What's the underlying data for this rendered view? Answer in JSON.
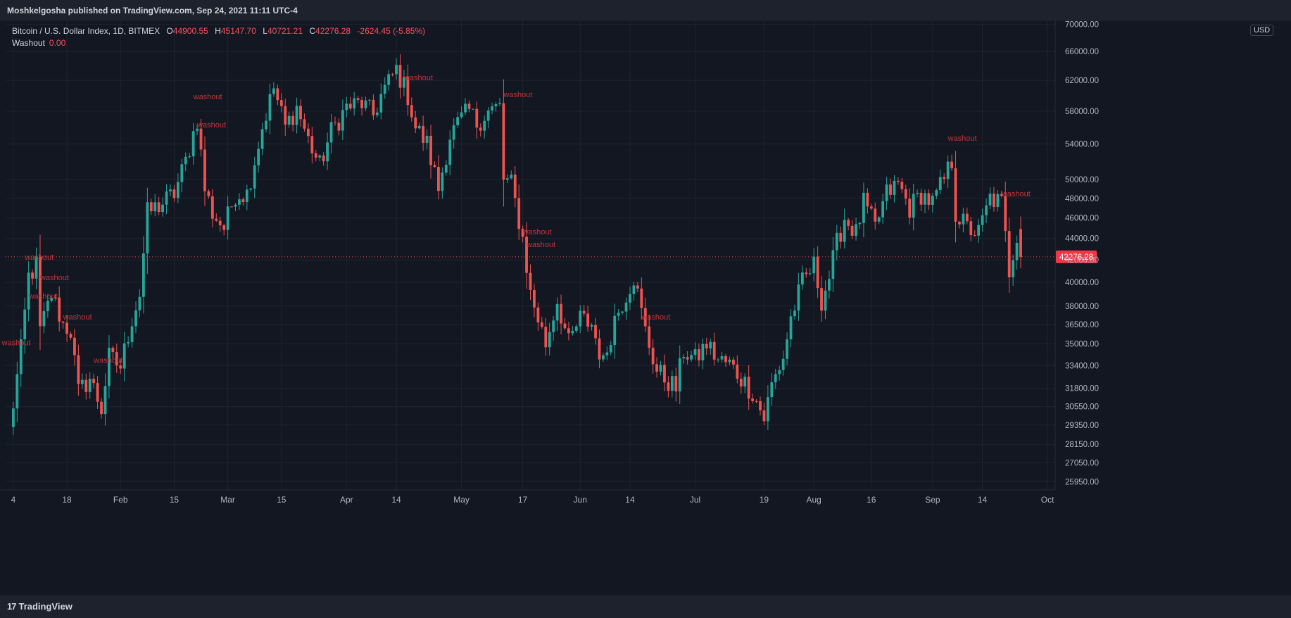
{
  "header": {
    "published_by": "Moshkelgosha published on TradingView.com, Sep 24, 2021 11:11 UTC-4"
  },
  "legend": {
    "symbol": "Bitcoin / U.S. Dollar Index, 1D, BITMEX",
    "o_label": "O",
    "o_value": "44900.55",
    "h_label": "H",
    "h_value": "45147.70",
    "l_label": "L",
    "l_value": "40721.21",
    "c_label": "C",
    "c_value": "42276.28",
    "change": "-2624.45 (-5.85%)",
    "indicator_name": "Washout",
    "indicator_value": "0.00"
  },
  "currency_badge": "USD",
  "footer": {
    "brand": "TradingView",
    "logo_mark": "17"
  },
  "colors": {
    "background": "#131722",
    "up": "#26a69a",
    "down": "#ef5350",
    "grid": "#1f2330",
    "text": "#b2b5be",
    "last_price_tag": "#f23645",
    "annotation": "#c2353a"
  },
  "chart_data": {
    "type": "candlestick",
    "title": "Bitcoin / U.S. Dollar Index, 1D, BITMEX",
    "price_scale": "log",
    "ylim": [
      25500,
      70500
    ],
    "xlim": [
      "2021-01-02",
      "2021-10-03"
    ],
    "y_ticks": [
      "70000.00",
      "66000.00",
      "62000.00",
      "58000.00",
      "54000.00",
      "50000.00",
      "48000.00",
      "46000.00",
      "44000.00",
      "42000.00",
      "40000.00",
      "38000.00",
      "36500.00",
      "35000.00",
      "33400.00",
      "31800.00",
      "30550.00",
      "29350.00",
      "28150.00",
      "27050.00",
      "25950.00"
    ],
    "x_ticks": [
      {
        "label": "4",
        "date": "2021-01-04"
      },
      {
        "label": "18",
        "date": "2021-01-18"
      },
      {
        "label": "Feb",
        "date": "2021-02-01"
      },
      {
        "label": "15",
        "date": "2021-02-15"
      },
      {
        "label": "Mar",
        "date": "2021-03-01"
      },
      {
        "label": "15",
        "date": "2021-03-15"
      },
      {
        "label": "Apr",
        "date": "2021-04-01"
      },
      {
        "label": "14",
        "date": "2021-04-14"
      },
      {
        "label": "May",
        "date": "2021-05-01"
      },
      {
        "label": "17",
        "date": "2021-05-17"
      },
      {
        "label": "Jun",
        "date": "2021-06-01"
      },
      {
        "label": "14",
        "date": "2021-06-14"
      },
      {
        "label": "Jul",
        "date": "2021-07-01"
      },
      {
        "label": "19",
        "date": "2021-07-19"
      },
      {
        "label": "Aug",
        "date": "2021-08-01"
      },
      {
        "label": "16",
        "date": "2021-08-16"
      },
      {
        "label": "Sep",
        "date": "2021-09-01"
      },
      {
        "label": "14",
        "date": "2021-09-14"
      },
      {
        "label": "Oct",
        "date": "2021-10-01"
      }
    ],
    "last_price": "42276.28",
    "series_points": [
      [
        "2021-01-03",
        29000
      ],
      [
        "2021-01-06",
        34500
      ],
      [
        "2021-01-08",
        40500
      ],
      [
        "2021-01-10",
        41500
      ],
      [
        "2021-01-11",
        36000
      ],
      [
        "2021-01-14",
        39000
      ],
      [
        "2021-01-17",
        36500
      ],
      [
        "2021-01-19",
        36000
      ],
      [
        "2021-01-21",
        31500
      ],
      [
        "2021-01-24",
        32500
      ],
      [
        "2021-01-27",
        30400
      ],
      [
        "2021-01-29",
        34000
      ],
      [
        "2021-02-01",
        33300
      ],
      [
        "2021-02-04",
        37000
      ],
      [
        "2021-02-06",
        39000
      ],
      [
        "2021-02-08",
        46500
      ],
      [
        "2021-02-12",
        47500
      ],
      [
        "2021-02-15",
        48500
      ],
      [
        "2021-02-18",
        52000
      ],
      [
        "2021-02-21",
        57000
      ],
      [
        "2021-02-23",
        49000
      ],
      [
        "2021-02-25",
        46500
      ],
      [
        "2021-02-28",
        45000
      ],
      [
        "2021-03-03",
        48500
      ],
      [
        "2021-03-06",
        48500
      ],
      [
        "2021-03-10",
        56000
      ],
      [
        "2021-03-13",
        61000
      ],
      [
        "2021-03-16",
        56000
      ],
      [
        "2021-03-19",
        58500
      ],
      [
        "2021-03-22",
        54500
      ],
      [
        "2021-03-25",
        51500
      ],
      [
        "2021-03-28",
        55500
      ],
      [
        "2021-04-01",
        58500
      ],
      [
        "2021-04-05",
        59000
      ],
      [
        "2021-04-08",
        57500
      ],
      [
        "2021-04-10",
        60000
      ],
      [
        "2021-04-14",
        63500
      ],
      [
        "2021-04-17",
        60000
      ],
      [
        "2021-04-19",
        56000
      ],
      [
        "2021-04-22",
        54000
      ],
      [
        "2021-04-25",
        49000
      ],
      [
        "2021-04-28",
        55000
      ],
      [
        "2021-05-01",
        57000
      ],
      [
        "2021-05-03",
        58000
      ],
      [
        "2021-05-05",
        56500
      ],
      [
        "2021-05-08",
        58000
      ],
      [
        "2021-05-11",
        58500
      ],
      [
        "2021-05-12",
        50000
      ],
      [
        "2021-05-14",
        49500
      ],
      [
        "2021-05-17",
        44000
      ],
      [
        "2021-05-19",
        39000
      ],
      [
        "2021-05-21",
        37000
      ],
      [
        "2021-05-23",
        35000
      ],
      [
        "2021-05-26",
        38500
      ],
      [
        "2021-05-29",
        35000
      ],
      [
        "2021-06-01",
        37000
      ],
      [
        "2021-06-04",
        36500
      ],
      [
        "2021-06-07",
        33500
      ],
      [
        "2021-06-10",
        37000
      ],
      [
        "2021-06-13",
        39000
      ],
      [
        "2021-06-15",
        40500
      ],
      [
        "2021-06-18",
        36000
      ],
      [
        "2021-06-21",
        33000
      ],
      [
        "2021-06-23",
        32500
      ],
      [
        "2021-06-26",
        31800
      ],
      [
        "2021-06-28",
        34500
      ],
      [
        "2021-07-01",
        33800
      ],
      [
        "2021-07-04",
        35000
      ],
      [
        "2021-07-07",
        33800
      ],
      [
        "2021-07-10",
        33500
      ],
      [
        "2021-07-13",
        32500
      ],
      [
        "2021-07-16",
        31500
      ],
      [
        "2021-07-19",
        29800
      ],
      [
        "2021-07-21",
        32000
      ],
      [
        "2021-07-24",
        34000
      ],
      [
        "2021-07-26",
        37000
      ],
      [
        "2021-07-29",
        40000
      ],
      [
        "2021-08-01",
        41500
      ],
      [
        "2021-08-03",
        38500
      ],
      [
        "2021-08-05",
        40500
      ],
      [
        "2021-08-07",
        43500
      ],
      [
        "2021-08-09",
        46000
      ],
      [
        "2021-08-12",
        44500
      ],
      [
        "2021-08-14",
        47500
      ],
      [
        "2021-08-17",
        45000
      ],
      [
        "2021-08-20",
        48500
      ],
      [
        "2021-08-23",
        49500
      ],
      [
        "2021-08-26",
        47000
      ],
      [
        "2021-08-29",
        48500
      ],
      [
        "2021-09-01",
        47500
      ],
      [
        "2021-09-04",
        50000
      ],
      [
        "2021-09-06",
        52000
      ],
      [
        "2021-09-07",
        46500
      ],
      [
        "2021-09-10",
        45000
      ],
      [
        "2021-09-13",
        44500
      ],
      [
        "2021-09-16",
        48000
      ],
      [
        "2021-09-19",
        47500
      ],
      [
        "2021-09-21",
        41000
      ],
      [
        "2021-09-23",
        44500
      ],
      [
        "2021-09-24",
        42276
      ]
    ],
    "annotations": [
      {
        "text": "washout",
        "date": "2021-01-01",
        "price": 34900
      },
      {
        "text": "washout",
        "date": "2021-01-07",
        "price": 42000
      },
      {
        "text": "washout",
        "date": "2021-01-11",
        "price": 40200
      },
      {
        "text": "washout",
        "date": "2021-01-08",
        "price": 38600
      },
      {
        "text": "washout",
        "date": "2021-01-17",
        "price": 36900
      },
      {
        "text": "washout",
        "date": "2021-01-25",
        "price": 33600
      },
      {
        "text": "washout",
        "date": "2021-02-20",
        "price": 59500
      },
      {
        "text": "washout",
        "date": "2021-02-21",
        "price": 56000
      },
      {
        "text": "washout",
        "date": "2021-04-16",
        "price": 62000
      },
      {
        "text": "washout",
        "date": "2021-05-12",
        "price": 59800
      },
      {
        "text": "washout",
        "date": "2021-05-17",
        "price": 44400
      },
      {
        "text": "washout",
        "date": "2021-05-18",
        "price": 43200
      },
      {
        "text": "washout",
        "date": "2021-06-17",
        "price": 36900
      },
      {
        "text": "washout",
        "date": "2021-09-05",
        "price": 54400
      },
      {
        "text": "washout",
        "date": "2021-09-19",
        "price": 48200
      }
    ]
  }
}
